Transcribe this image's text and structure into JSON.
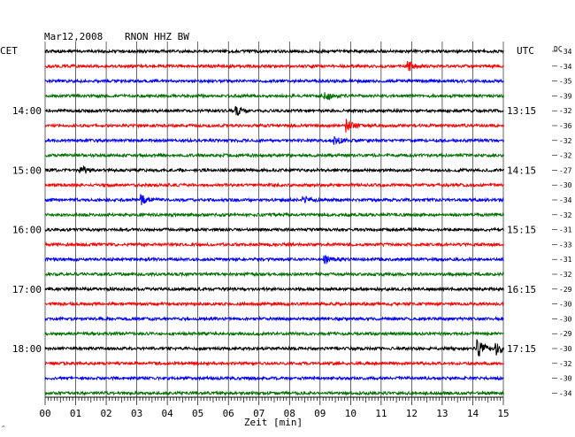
{
  "header": {
    "date": "Mar12,2008",
    "station": "RNON HHZ BW",
    "left_zone": "CET",
    "right_zone": "UTC",
    "dc_label": "DC"
  },
  "chart_data": {
    "type": "line",
    "title": "Mar12,2008   RNON HHZ BW",
    "xlabel": "Zeit [min]",
    "xlim": [
      0,
      15
    ],
    "x_ticks": [
      "00",
      "01",
      "02",
      "03",
      "04",
      "05",
      "06",
      "07",
      "08",
      "09",
      "10",
      "11",
      "12",
      "13",
      "14",
      "15"
    ],
    "grid": true,
    "trace_colors": [
      "#000000",
      "#ff0000",
      "#0000ff",
      "#007000"
    ],
    "left_hour_labels": [
      {
        "row": 4,
        "label": "14:00"
      },
      {
        "row": 8,
        "label": "15:00"
      },
      {
        "row": 12,
        "label": "16:00"
      },
      {
        "row": 16,
        "label": "17:00"
      },
      {
        "row": 20,
        "label": "18:00"
      }
    ],
    "right_hour_labels": [
      {
        "row": 0,
        "label": "UTC"
      },
      {
        "row": 4,
        "label": "13:15"
      },
      {
        "row": 8,
        "label": "14:15"
      },
      {
        "row": 12,
        "label": "15:15"
      },
      {
        "row": 16,
        "label": "16:15"
      },
      {
        "row": 20,
        "label": "17:15"
      }
    ],
    "dc_offsets": [
      "-34",
      "-34",
      "-35",
      "-39",
      "-32",
      "-36",
      "-32",
      "-32",
      "-27",
      "-30",
      "-34",
      "-32",
      "-31",
      "-33",
      "-31",
      "-32",
      "-29",
      "-30",
      "-30",
      "-29",
      "-30",
      "-32",
      "-30",
      "-34"
    ],
    "events": [
      {
        "row": 1,
        "minute": 11.9,
        "amp": 5
      },
      {
        "row": 3,
        "minute": 9.2,
        "amp": 4
      },
      {
        "row": 4,
        "minute": 6.3,
        "amp": 4
      },
      {
        "row": 5,
        "minute": 9.9,
        "amp": 7
      },
      {
        "row": 6,
        "minute": 9.5,
        "amp": 4
      },
      {
        "row": 8,
        "minute": 1.2,
        "amp": 4
      },
      {
        "row": 10,
        "minute": 3.2,
        "amp": 5
      },
      {
        "row": 10,
        "minute": 8.5,
        "amp": 3
      },
      {
        "row": 14,
        "minute": 9.2,
        "amp": 4
      },
      {
        "row": 20,
        "minute": 14.2,
        "amp": 9
      },
      {
        "row": 20,
        "minute": 14.8,
        "amp": 7
      }
    ]
  }
}
